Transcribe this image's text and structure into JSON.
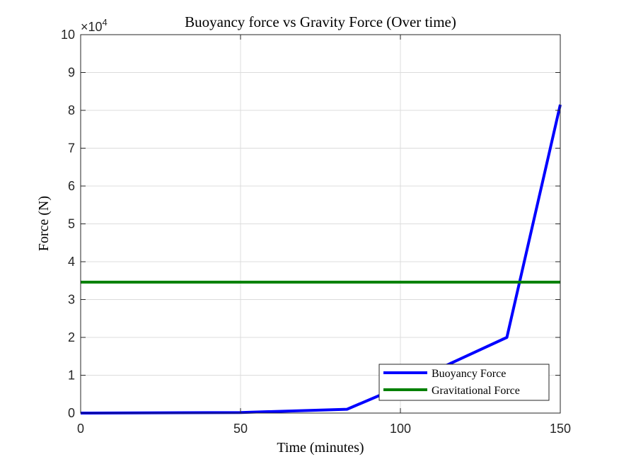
{
  "chart_data": {
    "type": "line",
    "title": "Buoyancy force vs Gravity Force (Over time)",
    "xlabel": "Time (minutes)",
    "ylabel": "Force (N)",
    "exponent_label": "×10",
    "exponent_power": "4",
    "xlim": [
      0,
      150
    ],
    "ylim": [
      0,
      100000
    ],
    "xticks": [
      0,
      50,
      100,
      150
    ],
    "xtick_labels": [
      "0",
      "50",
      "100",
      "150"
    ],
    "yticks": [
      0,
      10000,
      20000,
      30000,
      40000,
      50000,
      60000,
      70000,
      80000,
      90000,
      100000
    ],
    "ytick_labels": [
      "0",
      "1",
      "2",
      "3",
      "4",
      "5",
      "6",
      "7",
      "8",
      "9",
      "10"
    ],
    "grid": true,
    "legend_position": "bottom-right",
    "series": [
      {
        "name": "Buoyancy Force",
        "color": "#0000ff",
        "x": [
          0,
          50,
          83.3,
          100,
          133.3,
          150
        ],
        "y": [
          0,
          150,
          1000,
          7000,
          20000,
          81500
        ]
      },
      {
        "name": "Gravitational Force",
        "color": "#008000",
        "x": [
          0,
          150
        ],
        "y": [
          34600,
          34600
        ]
      }
    ]
  }
}
